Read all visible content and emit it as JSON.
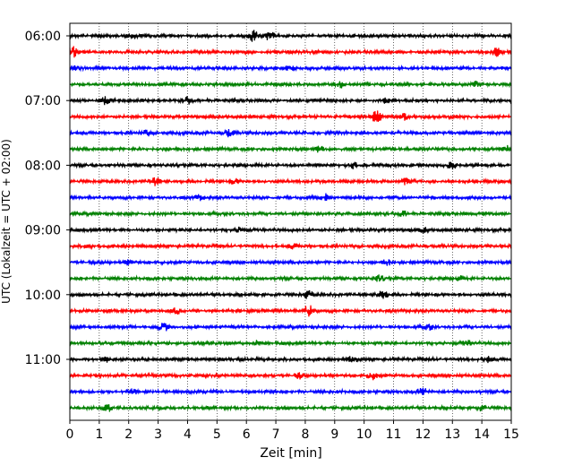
{
  "chart_data": {
    "type": "line",
    "title": "",
    "xlabel": "Zeit  [min]",
    "ylabel": "UTC (Lokalzeit = UTC + 02:00)",
    "xlim": [
      0,
      15
    ],
    "x_ticks": [
      0,
      1,
      2,
      3,
      4,
      5,
      6,
      7,
      8,
      9,
      10,
      11,
      12,
      13,
      14,
      15
    ],
    "x_tick_labels": [
      "0",
      "1",
      "2",
      "3",
      "4",
      "5",
      "6",
      "7",
      "8",
      "9",
      "10",
      "11",
      "12",
      "13",
      "14",
      "15"
    ],
    "y_tick_labels": [
      "06:00",
      "07:00",
      "08:00",
      "09:00",
      "10:00",
      "11:00"
    ],
    "y_tick_rows": [
      0,
      4,
      8,
      12,
      16,
      20
    ],
    "minutes_per_line": 15,
    "grid": "vertical dotted",
    "trace_color_cycle": [
      "#000000",
      "#ff0000",
      "#0000ff",
      "#008000"
    ],
    "traces": [
      {
        "start": "06:00",
        "color": "#000000",
        "events": [
          [
            6.2,
            0.9
          ],
          [
            6.8,
            0.7
          ],
          [
            2.1,
            0.4
          ]
        ]
      },
      {
        "start": "06:15",
        "color": "#ff0000",
        "events": [
          [
            0.1,
            1.0
          ],
          [
            14.5,
            0.6
          ]
        ]
      },
      {
        "start": "06:30",
        "color": "#0000ff",
        "events": [
          [
            0.3,
            0.6
          ],
          [
            7.5,
            0.4
          ]
        ]
      },
      {
        "start": "06:45",
        "color": "#008000",
        "events": [
          [
            9.2,
            0.5
          ],
          [
            13.8,
            0.4
          ]
        ]
      },
      {
        "start": "07:00",
        "color": "#000000",
        "events": [
          [
            1.2,
            0.5
          ],
          [
            4.0,
            0.5
          ],
          [
            10.8,
            0.5
          ]
        ]
      },
      {
        "start": "07:15",
        "color": "#ff0000",
        "events": [
          [
            10.4,
            1.0
          ],
          [
            11.4,
            0.5
          ]
        ]
      },
      {
        "start": "07:30",
        "color": "#0000ff",
        "events": [
          [
            5.4,
            0.6
          ],
          [
            2.6,
            0.4
          ]
        ]
      },
      {
        "start": "07:45",
        "color": "#008000",
        "events": [
          [
            8.5,
            0.5
          ],
          [
            14.8,
            0.5
          ]
        ]
      },
      {
        "start": "08:00",
        "color": "#000000",
        "events": [
          [
            9.6,
            0.5
          ],
          [
            13.0,
            0.5
          ]
        ]
      },
      {
        "start": "08:15",
        "color": "#ff0000",
        "events": [
          [
            2.9,
            0.6
          ],
          [
            5.6,
            0.5
          ],
          [
            11.4,
            0.5
          ]
        ]
      },
      {
        "start": "08:30",
        "color": "#0000ff",
        "events": [
          [
            4.4,
            0.4
          ],
          [
            8.7,
            0.4
          ]
        ]
      },
      {
        "start": "08:45",
        "color": "#008000",
        "events": [
          [
            11.3,
            0.4
          ],
          [
            14.2,
            0.4
          ]
        ]
      },
      {
        "start": "09:00",
        "color": "#000000",
        "events": [
          [
            5.8,
            0.5
          ],
          [
            12.0,
            0.4
          ]
        ]
      },
      {
        "start": "09:15",
        "color": "#ff0000",
        "events": [
          [
            7.6,
            0.4
          ],
          [
            0.6,
            0.3
          ]
        ]
      },
      {
        "start": "09:30",
        "color": "#0000ff",
        "events": [
          [
            2.0,
            0.4
          ],
          [
            10.8,
            0.4
          ]
        ]
      },
      {
        "start": "09:45",
        "color": "#008000",
        "events": [
          [
            10.5,
            0.5
          ],
          [
            13.2,
            0.4
          ]
        ]
      },
      {
        "start": "10:00",
        "color": "#000000",
        "events": [
          [
            10.6,
            0.8
          ],
          [
            8.1,
            0.6
          ]
        ]
      },
      {
        "start": "10:15",
        "color": "#ff0000",
        "events": [
          [
            8.1,
            1.0
          ],
          [
            3.6,
            0.4
          ]
        ]
      },
      {
        "start": "10:30",
        "color": "#0000ff",
        "events": [
          [
            3.2,
            0.6
          ],
          [
            12.2,
            0.4
          ]
        ]
      },
      {
        "start": "10:45",
        "color": "#008000",
        "events": [
          [
            6.3,
            0.4
          ],
          [
            13.5,
            0.4
          ]
        ]
      },
      {
        "start": "11:00",
        "color": "#000000",
        "events": [
          [
            1.3,
            0.4
          ],
          [
            9.6,
            0.4
          ],
          [
            14.2,
            0.4
          ]
        ]
      },
      {
        "start": "11:15",
        "color": "#ff0000",
        "events": [
          [
            10.3,
            0.6
          ],
          [
            7.8,
            0.4
          ]
        ]
      },
      {
        "start": "11:30",
        "color": "#0000ff",
        "events": [
          [
            12.0,
            0.6
          ],
          [
            2.1,
            0.4
          ]
        ]
      },
      {
        "start": "11:45",
        "color": "#008000",
        "events": [
          [
            1.3,
            0.6
          ],
          [
            14.0,
            0.4
          ]
        ]
      }
    ]
  }
}
